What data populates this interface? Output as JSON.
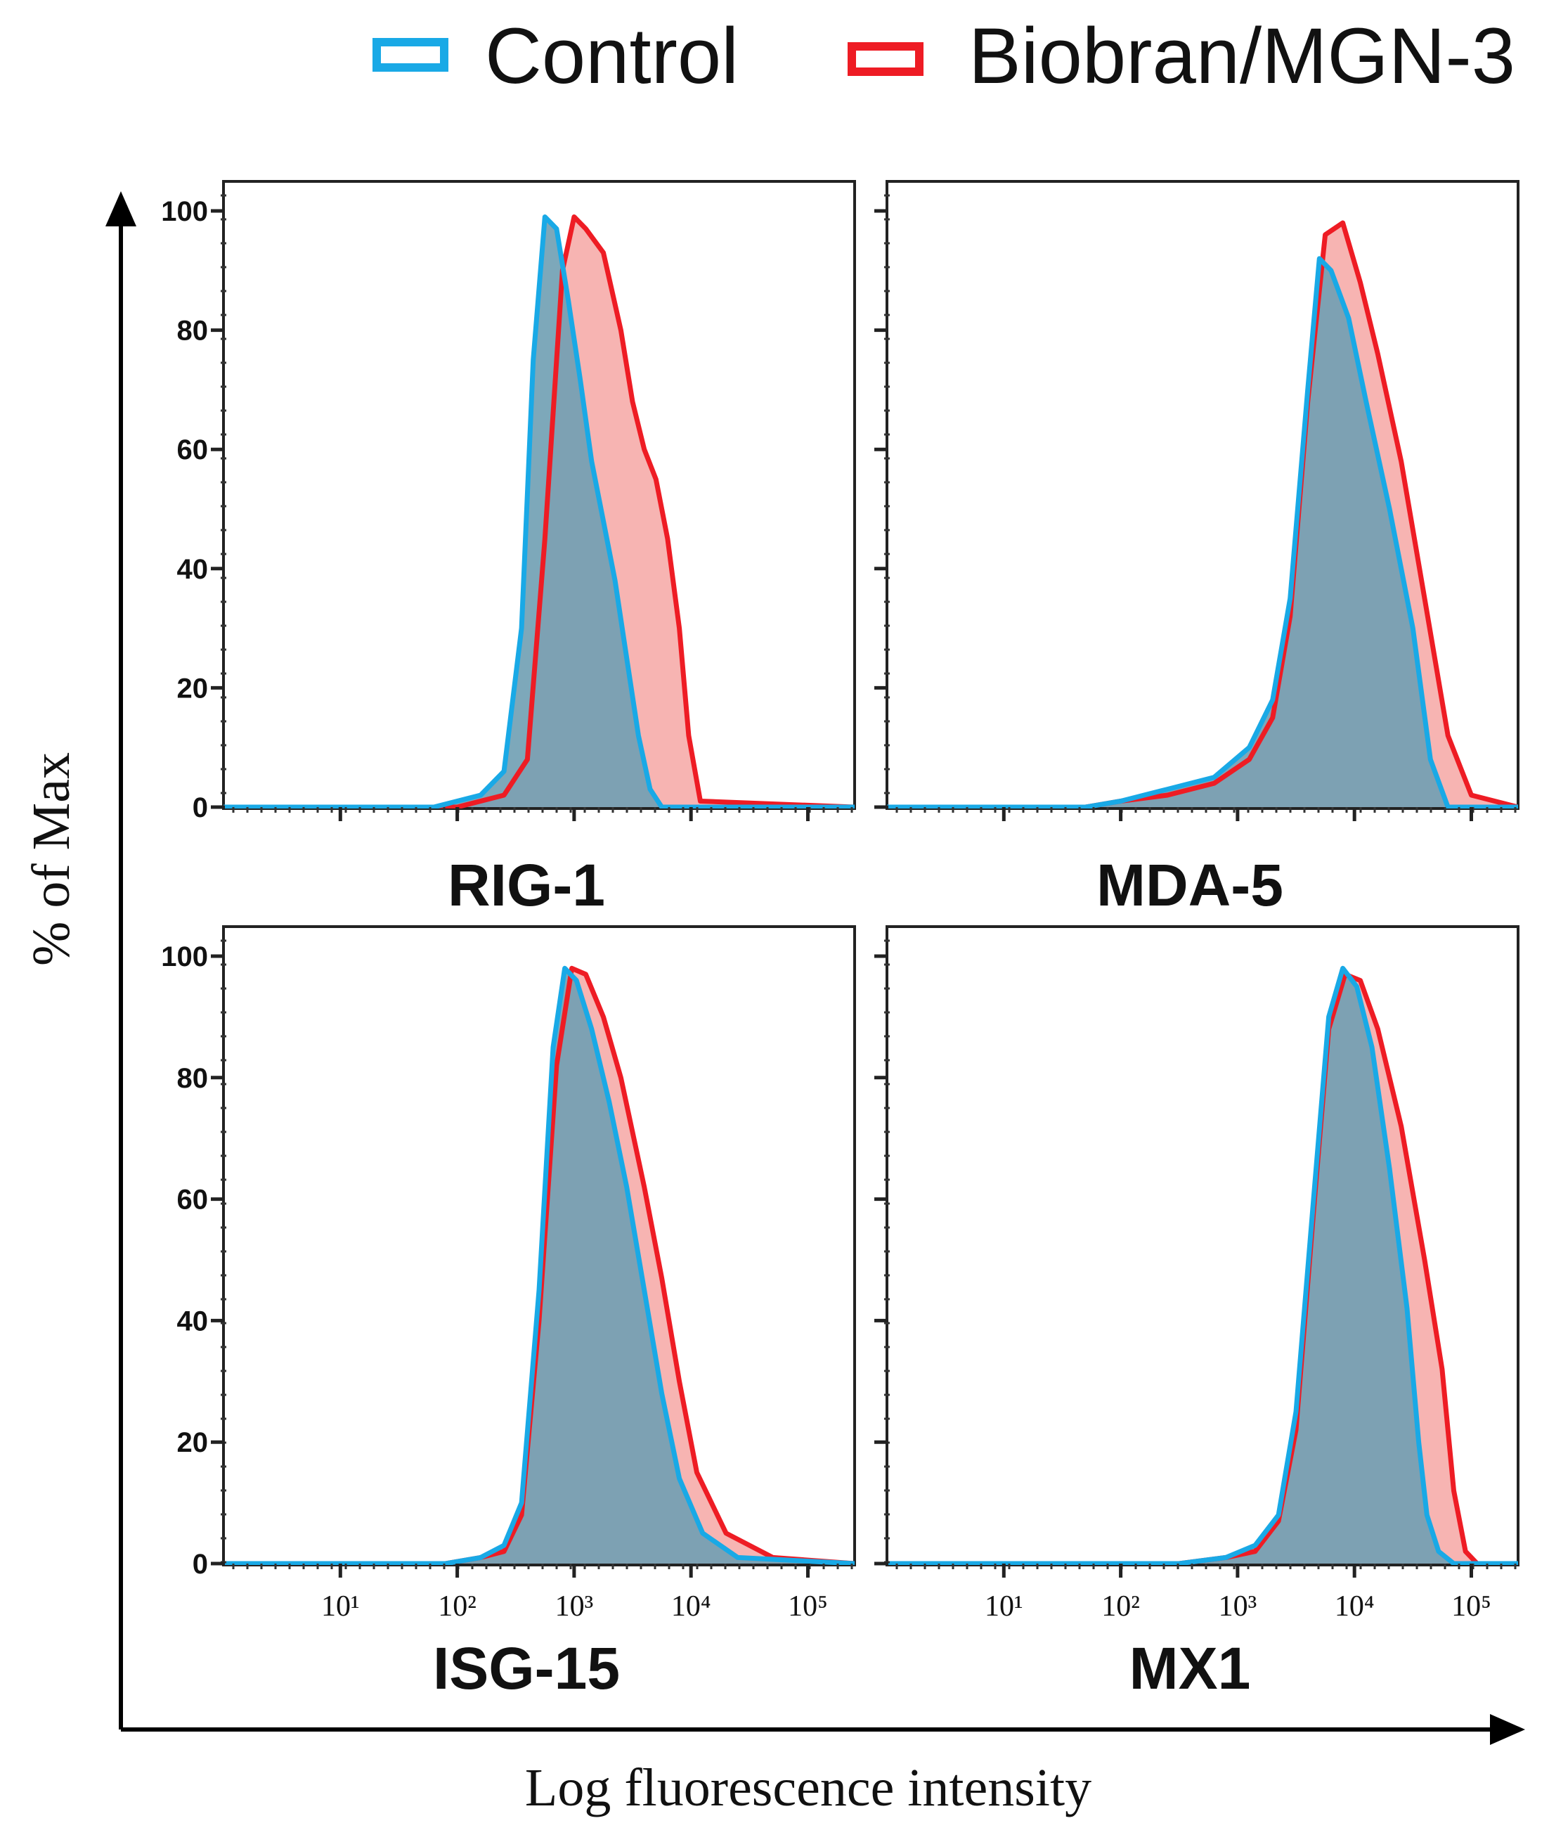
{
  "legend": {
    "control": "Control",
    "treated": "Biobran/MGN-3"
  },
  "colors": {
    "control_line": "#19a9e6",
    "control_fill": "#6f9fb3",
    "treated_line": "#ee1c24",
    "treated_fill": "#f6a7a4"
  },
  "axes": {
    "ylabel": "% of Max",
    "xlabel": "Log fluorescence intensity"
  },
  "chart_data": [
    {
      "type": "area",
      "title": "RIG-1",
      "ylim": [
        0,
        100
      ],
      "yticks": [
        "0",
        "20",
        "40",
        "60",
        "80",
        "100"
      ],
      "xlim_log10": [
        0,
        5.4
      ],
      "xticks": [],
      "series": [
        {
          "name": "Control",
          "x_log10": [
            0,
            1.8,
            2.2,
            2.4,
            2.55,
            2.65,
            2.75,
            2.85,
            2.95,
            3.05,
            3.15,
            3.25,
            3.35,
            3.45,
            3.55,
            3.65,
            3.75,
            5.4
          ],
          "y": [
            0,
            0,
            2,
            6,
            30,
            75,
            99,
            97,
            85,
            72,
            58,
            48,
            38,
            25,
            12,
            3,
            0,
            0
          ]
        },
        {
          "name": "Biobran/MGN-3",
          "x_log10": [
            0,
            2.0,
            2.4,
            2.6,
            2.75,
            2.9,
            3.0,
            3.1,
            3.25,
            3.4,
            3.5,
            3.6,
            3.7,
            3.8,
            3.9,
            3.98,
            4.08,
            5.4
          ],
          "y": [
            0,
            0,
            2,
            8,
            45,
            90,
            99,
            97,
            93,
            80,
            68,
            60,
            55,
            45,
            30,
            12,
            1,
            0
          ]
        }
      ]
    },
    {
      "type": "area",
      "title": "MDA-5",
      "ylim": [
        0,
        100
      ],
      "yticks": [],
      "xlim_log10": [
        0,
        5.4
      ],
      "xticks": [],
      "series": [
        {
          "name": "Control",
          "x_log10": [
            0,
            1.7,
            2.0,
            2.4,
            2.8,
            3.1,
            3.3,
            3.45,
            3.6,
            3.7,
            3.8,
            3.95,
            4.1,
            4.3,
            4.5,
            4.65,
            4.8,
            5.4
          ],
          "y": [
            0,
            0,
            1,
            3,
            5,
            10,
            18,
            35,
            70,
            92,
            90,
            82,
            68,
            50,
            30,
            8,
            0,
            0
          ]
        },
        {
          "name": "Biobran/MGN-3",
          "x_log10": [
            0,
            1.7,
            2.0,
            2.4,
            2.8,
            3.1,
            3.3,
            3.45,
            3.6,
            3.75,
            3.9,
            4.05,
            4.2,
            4.4,
            4.6,
            4.8,
            5.0,
            5.4
          ],
          "y": [
            0,
            0,
            1,
            2,
            4,
            8,
            15,
            32,
            68,
            96,
            98,
            88,
            76,
            58,
            35,
            12,
            2,
            0
          ]
        }
      ]
    },
    {
      "type": "area",
      "title": "ISG-15",
      "ylim": [
        0,
        100
      ],
      "yticks": [
        "0",
        "20",
        "40",
        "60",
        "80",
        "100"
      ],
      "xlim_log10": [
        0,
        5.4
      ],
      "xticks": [
        "10¹",
        "10²",
        "10³",
        "10⁴",
        "10⁵"
      ],
      "series": [
        {
          "name": "Control",
          "x_log10": [
            0,
            1.9,
            2.2,
            2.4,
            2.55,
            2.7,
            2.82,
            2.92,
            3.02,
            3.15,
            3.3,
            3.45,
            3.6,
            3.75,
            3.9,
            4.1,
            4.4,
            5.4
          ],
          "y": [
            0,
            0,
            1,
            3,
            10,
            45,
            85,
            98,
            96,
            88,
            76,
            62,
            45,
            28,
            14,
            5,
            1,
            0
          ]
        },
        {
          "name": "Biobran/MGN-3",
          "x_log10": [
            0,
            1.9,
            2.2,
            2.4,
            2.55,
            2.7,
            2.85,
            2.98,
            3.1,
            3.25,
            3.4,
            3.6,
            3.75,
            3.9,
            4.05,
            4.3,
            4.7,
            5.4
          ],
          "y": [
            0,
            0,
            1,
            2,
            8,
            40,
            82,
            98,
            97,
            90,
            80,
            62,
            47,
            30,
            15,
            5,
            1,
            0
          ]
        }
      ]
    },
    {
      "type": "area",
      "title": "MX1",
      "ylim": [
        0,
        100
      ],
      "yticks": [],
      "xlim_log10": [
        0,
        5.4
      ],
      "xticks": [
        "10¹",
        "10²",
        "10³",
        "10⁴",
        "10⁵"
      ],
      "series": [
        {
          "name": "Control",
          "x_log10": [
            0,
            2.5,
            2.9,
            3.15,
            3.35,
            3.5,
            3.65,
            3.78,
            3.9,
            4.02,
            4.15,
            4.3,
            4.45,
            4.55,
            4.62,
            4.72,
            4.85,
            5.4
          ],
          "y": [
            0,
            0,
            1,
            3,
            8,
            25,
            60,
            90,
            98,
            95,
            85,
            65,
            42,
            20,
            8,
            2,
            0,
            0
          ]
        },
        {
          "name": "Biobran/MGN-3",
          "x_log10": [
            0,
            2.5,
            2.9,
            3.15,
            3.35,
            3.5,
            3.65,
            3.78,
            3.92,
            4.05,
            4.2,
            4.4,
            4.6,
            4.75,
            4.85,
            4.95,
            5.05,
            5.4
          ],
          "y": [
            0,
            0,
            1,
            2,
            7,
            22,
            58,
            88,
            97,
            96,
            88,
            72,
            50,
            32,
            12,
            2,
            0,
            0
          ]
        }
      ]
    }
  ]
}
